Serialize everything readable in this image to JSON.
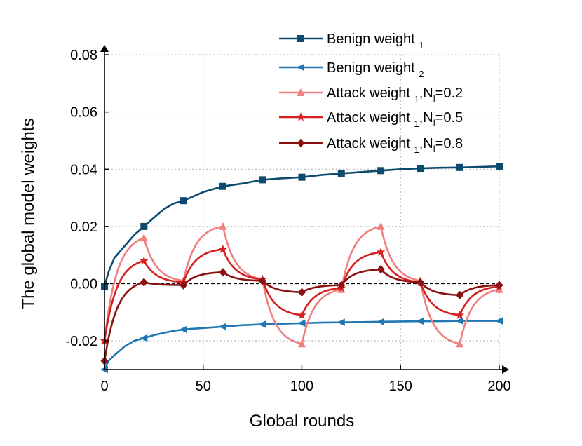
{
  "chart_data": {
    "type": "line",
    "xlabel": "Global rounds",
    "ylabel": "The global model weights",
    "xlim": [
      0,
      200
    ],
    "ylim": [
      -0.03,
      0.08
    ],
    "xticks": [
      0,
      50,
      100,
      150,
      200
    ],
    "xtick_labels": [
      "0",
      "50",
      "100",
      "150",
      "200"
    ],
    "yticks": [
      -0.02,
      0.0,
      0.02,
      0.04,
      0.06,
      0.08
    ],
    "ytick_labels": [
      "-0.02",
      "0.00",
      "0.02",
      "0.04",
      "0.06",
      "0.08"
    ],
    "grid": true,
    "reference_line_y": 0.0,
    "legend_position": "top-right",
    "series": [
      {
        "name": "Benign weight 1",
        "legend_main": "Benign weight ",
        "legend_sub": "1",
        "legend_tail": "",
        "color": "#0d4a70",
        "marker": "square",
        "x": [
          0,
          2,
          5,
          10,
          15,
          20,
          25,
          30,
          35,
          40,
          50,
          60,
          70,
          80,
          90,
          100,
          110,
          120,
          130,
          140,
          150,
          160,
          170,
          180,
          190,
          200
        ],
        "y": [
          -0.001,
          0.004,
          0.009,
          0.013,
          0.017,
          0.02,
          0.023,
          0.026,
          0.028,
          0.029,
          0.032,
          0.034,
          0.035,
          0.0363,
          0.0368,
          0.0372,
          0.038,
          0.0385,
          0.039,
          0.0395,
          0.04,
          0.0403,
          0.0405,
          0.0406,
          0.0408,
          0.041
        ],
        "marker_x": [
          0,
          20,
          40,
          60,
          80,
          100,
          120,
          140,
          160,
          180,
          200
        ],
        "marker_y": [
          -0.001,
          0.02,
          0.029,
          0.034,
          0.0363,
          0.0372,
          0.0385,
          0.0395,
          0.0403,
          0.0406,
          0.041
        ]
      },
      {
        "name": "Benign weight 2",
        "legend_main": " Benign weight ",
        "legend_sub": "2",
        "legend_tail": "",
        "color": "#1f77b4",
        "marker": "triangle-left",
        "x": [
          0,
          2,
          5,
          10,
          15,
          20,
          25,
          30,
          35,
          40,
          50,
          60,
          70,
          80,
          90,
          100,
          110,
          120,
          130,
          140,
          150,
          160,
          170,
          180,
          190,
          200
        ],
        "y": [
          -0.03,
          -0.027,
          -0.025,
          -0.022,
          -0.02,
          -0.019,
          -0.018,
          -0.0172,
          -0.0165,
          -0.016,
          -0.0155,
          -0.015,
          -0.0145,
          -0.0142,
          -0.014,
          -0.0138,
          -0.0136,
          -0.0135,
          -0.0134,
          -0.0133,
          -0.0132,
          -0.0131,
          -0.0131,
          -0.013,
          -0.013,
          -0.013
        ],
        "marker_x": [
          0,
          20,
          40,
          60,
          80,
          100,
          120,
          140,
          160,
          180,
          200
        ],
        "marker_y": [
          -0.03,
          -0.019,
          -0.016,
          -0.015,
          -0.0142,
          -0.0138,
          -0.0135,
          -0.0133,
          -0.0131,
          -0.013,
          -0.013
        ]
      },
      {
        "name": "Attack weight 1, Nl=0.2",
        "legend_main": "Attack weight ",
        "legend_sub": "1",
        "legend_tail": ",N",
        "legend_tail_sub": "l",
        "legend_end": "=0.2",
        "color": "#f07f7f",
        "marker": "triangle-up",
        "x": [
          0,
          20,
          40,
          60,
          80,
          100,
          120,
          140,
          160,
          180,
          200
        ],
        "y": [
          -0.02,
          0.016,
          0.001,
          0.02,
          0.0015,
          -0.021,
          -0.002,
          0.02,
          0.001,
          -0.021,
          -0.002
        ],
        "curve": "cusp",
        "marker_x": [
          0,
          20,
          40,
          60,
          80,
          100,
          120,
          140,
          160,
          180,
          200
        ],
        "marker_y": [
          -0.02,
          0.016,
          0.001,
          0.02,
          0.0015,
          -0.021,
          -0.002,
          0.02,
          0.001,
          -0.021,
          -0.002
        ]
      },
      {
        "name": "Attack weight 1, Nl=0.5",
        "legend_main": "Attack weight ",
        "legend_sub": "1",
        "legend_tail": ",N",
        "legend_tail_sub": "l",
        "legend_end": "=0.5",
        "color": "#d62020",
        "marker": "star",
        "x": [
          0,
          20,
          40,
          60,
          80,
          100,
          120,
          140,
          160,
          180,
          200
        ],
        "y": [
          -0.02,
          0.008,
          0.0005,
          0.012,
          0.0015,
          -0.011,
          -0.0015,
          0.011,
          0.0005,
          -0.011,
          -0.001
        ],
        "curve": "cusp",
        "marker_x": [
          0,
          20,
          40,
          60,
          80,
          100,
          120,
          140,
          160,
          180,
          200
        ],
        "marker_y": [
          -0.02,
          0.008,
          0.0005,
          0.012,
          0.0015,
          -0.011,
          -0.0015,
          0.011,
          0.0005,
          -0.011,
          -0.001
        ]
      },
      {
        "name": "Attack weight 1, Nl=0.8",
        "legend_main": "Attack weight ",
        "legend_sub": "1",
        "legend_tail": ",N",
        "legend_tail_sub": "l",
        "legend_end": "=0.8",
        "color": "#8b1010",
        "marker": "diamond",
        "x": [
          0,
          20,
          40,
          60,
          80,
          100,
          120,
          140,
          160,
          180,
          200
        ],
        "y": [
          -0.027,
          0.0005,
          -0.0005,
          0.004,
          0.001,
          -0.003,
          -0.0005,
          0.005,
          0.0005,
          -0.004,
          -0.0005
        ],
        "curve": "cusp",
        "marker_x": [
          0,
          20,
          40,
          60,
          80,
          100,
          120,
          140,
          160,
          180,
          200
        ],
        "marker_y": [
          -0.027,
          0.0005,
          -0.0005,
          0.004,
          0.001,
          -0.003,
          -0.0005,
          0.005,
          0.0005,
          -0.004,
          -0.0005
        ]
      }
    ]
  }
}
